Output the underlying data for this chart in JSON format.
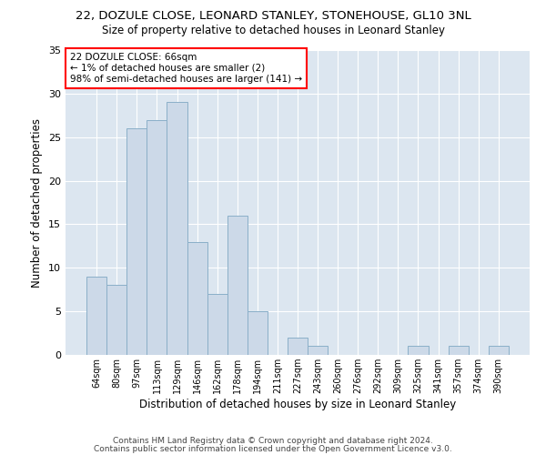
{
  "title1": "22, DOZULE CLOSE, LEONARD STANLEY, STONEHOUSE, GL10 3NL",
  "title2": "Size of property relative to detached houses in Leonard Stanley",
  "xlabel": "Distribution of detached houses by size in Leonard Stanley",
  "ylabel": "Number of detached properties",
  "categories": [
    "64sqm",
    "80sqm",
    "97sqm",
    "113sqm",
    "129sqm",
    "146sqm",
    "162sqm",
    "178sqm",
    "194sqm",
    "211sqm",
    "227sqm",
    "243sqm",
    "260sqm",
    "276sqm",
    "292sqm",
    "309sqm",
    "325sqm",
    "341sqm",
    "357sqm",
    "374sqm",
    "390sqm"
  ],
  "values": [
    9,
    8,
    26,
    27,
    29,
    13,
    7,
    16,
    5,
    0,
    2,
    1,
    0,
    0,
    0,
    0,
    1,
    0,
    1,
    0,
    1
  ],
  "bar_color": "#ccd9e8",
  "bar_edge_color": "#8aafc8",
  "background_color": "#dce6f0",
  "grid_color": "#ffffff",
  "annotation_box_text": "22 DOZULE CLOSE: 66sqm\n← 1% of detached houses are smaller (2)\n98% of semi-detached houses are larger (141) →",
  "ylim": [
    0,
    35
  ],
  "yticks": [
    0,
    5,
    10,
    15,
    20,
    25,
    30,
    35
  ],
  "footer1": "Contains HM Land Registry data © Crown copyright and database right 2024.",
  "footer2": "Contains public sector information licensed under the Open Government Licence v3.0."
}
